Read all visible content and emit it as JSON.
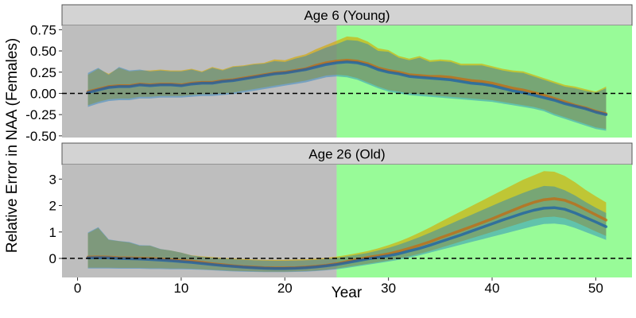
{
  "chart_data": {
    "type": "area",
    "xlabel": "Year",
    "ylabel": "Relative Error in NAA (Females)",
    "xlim": [
      -1.5,
      53.5
    ],
    "x_ticks": [
      0,
      10,
      20,
      30,
      40,
      50
    ],
    "shaded_regions": [
      {
        "x_start": -1.5,
        "x_end": 25,
        "color": "#bebebe"
      },
      {
        "x_start": 25,
        "x_end": 53.5,
        "color": "#98fb98"
      }
    ],
    "reference_line": {
      "y": 0,
      "style": "dashed"
    },
    "series_colors": [
      "#e69f00",
      "#1f78b4"
    ],
    "x": [
      1,
      2,
      3,
      4,
      5,
      6,
      7,
      8,
      9,
      10,
      11,
      12,
      13,
      14,
      15,
      16,
      17,
      18,
      19,
      20,
      21,
      22,
      23,
      24,
      25,
      26,
      27,
      28,
      29,
      30,
      31,
      32,
      33,
      34,
      35,
      36,
      37,
      38,
      39,
      40,
      41,
      42,
      43,
      44,
      45,
      46,
      47,
      48,
      49,
      50,
      51
    ],
    "panels": [
      {
        "title": "Age 6 (Young)",
        "ylim": [
          -0.52,
          0.8
        ],
        "y_ticks": [
          -0.5,
          -0.25,
          0,
          0.25,
          0.5,
          0.75
        ],
        "y_tick_labels": [
          "-0.50",
          "-0.25",
          "0.00",
          "0.25",
          "0.50",
          "0.75"
        ],
        "series": [
          {
            "median": [
              0.02,
              0.05,
              0.08,
              0.09,
              0.09,
              0.11,
              0.1,
              0.11,
              0.11,
              0.1,
              0.12,
              0.13,
              0.13,
              0.15,
              0.16,
              0.18,
              0.2,
              0.22,
              0.24,
              0.25,
              0.27,
              0.29,
              0.33,
              0.36,
              0.38,
              0.39,
              0.38,
              0.35,
              0.3,
              0.27,
              0.25,
              0.22,
              0.21,
              0.2,
              0.2,
              0.19,
              0.17,
              0.15,
              0.14,
              0.12,
              0.09,
              0.06,
              0.04,
              0.01,
              -0.02,
              -0.06,
              -0.1,
              -0.14,
              -0.17,
              -0.21,
              -0.24
            ],
            "lower": [
              -0.14,
              -0.1,
              -0.07,
              -0.06,
              -0.06,
              -0.04,
              -0.04,
              -0.03,
              -0.03,
              -0.03,
              -0.02,
              -0.01,
              -0.01,
              0,
              0.01,
              0.03,
              0.05,
              0.07,
              0.09,
              0.11,
              0.13,
              0.15,
              0.18,
              0.21,
              0.22,
              0.21,
              0.18,
              0.13,
              0.08,
              0.04,
              0.02,
              0,
              -0.01,
              -0.02,
              -0.03,
              -0.04,
              -0.05,
              -0.06,
              -0.07,
              -0.08,
              -0.1,
              -0.12,
              -0.14,
              -0.16,
              -0.19,
              -0.24,
              -0.28,
              -0.32,
              -0.36,
              -0.4,
              -0.42
            ],
            "upper": [
              0.22,
              0.29,
              0.23,
              0.3,
              0.26,
              0.27,
              0.27,
              0.28,
              0.27,
              0.27,
              0.29,
              0.26,
              0.31,
              0.28,
              0.32,
              0.33,
              0.35,
              0.36,
              0.4,
              0.39,
              0.43,
              0.46,
              0.52,
              0.57,
              0.62,
              0.67,
              0.66,
              0.61,
              0.53,
              0.51,
              0.44,
              0.41,
              0.44,
              0.39,
              0.4,
              0.39,
              0.35,
              0.35,
              0.35,
              0.32,
              0.29,
              0.27,
              0.26,
              0.22,
              0.18,
              0.14,
              0.1,
              0.08,
              0.05,
              0.02,
              0.08
            ]
          },
          {
            "median": [
              0.01,
              0.04,
              0.07,
              0.08,
              0.08,
              0.1,
              0.09,
              0.1,
              0.1,
              0.09,
              0.11,
              0.12,
              0.12,
              0.14,
              0.15,
              0.17,
              0.19,
              0.21,
              0.23,
              0.24,
              0.26,
              0.28,
              0.31,
              0.34,
              0.36,
              0.37,
              0.36,
              0.33,
              0.28,
              0.25,
              0.23,
              0.2,
              0.19,
              0.18,
              0.17,
              0.16,
              0.14,
              0.12,
              0.11,
              0.09,
              0.06,
              0.03,
              0.01,
              -0.02,
              -0.05,
              -0.08,
              -0.12,
              -0.15,
              -0.18,
              -0.22,
              -0.25
            ],
            "lower": [
              -0.16,
              -0.12,
              -0.09,
              -0.08,
              -0.08,
              -0.06,
              -0.06,
              -0.05,
              -0.05,
              -0.05,
              -0.04,
              -0.03,
              -0.03,
              -0.02,
              -0.01,
              0.01,
              0.03,
              0.05,
              0.07,
              0.09,
              0.11,
              0.13,
              0.16,
              0.19,
              0.2,
              0.19,
              0.16,
              0.11,
              0.06,
              0.02,
              0,
              -0.02,
              -0.03,
              -0.04,
              -0.05,
              -0.06,
              -0.07,
              -0.08,
              -0.09,
              -0.1,
              -0.12,
              -0.14,
              -0.16,
              -0.18,
              -0.21,
              -0.26,
              -0.3,
              -0.34,
              -0.38,
              -0.42,
              -0.44
            ],
            "upper": [
              0.24,
              0.3,
              0.22,
              0.31,
              0.27,
              0.28,
              0.26,
              0.27,
              0.26,
              0.26,
              0.28,
              0.25,
              0.3,
              0.27,
              0.31,
              0.32,
              0.34,
              0.35,
              0.38,
              0.37,
              0.41,
              0.44,
              0.49,
              0.54,
              0.58,
              0.63,
              0.62,
              0.58,
              0.5,
              0.49,
              0.42,
              0.39,
              0.42,
              0.37,
              0.38,
              0.37,
              0.33,
              0.33,
              0.33,
              0.3,
              0.27,
              0.25,
              0.24,
              0.2,
              0.16,
              0.12,
              0.08,
              0.06,
              0.03,
              0.01,
              0.06
            ]
          }
        ]
      },
      {
        "title": "Age 26 (Old)",
        "ylim": [
          -0.72,
          3.55
        ],
        "y_ticks": [
          0,
          1,
          2,
          3
        ],
        "y_tick_labels": [
          "0",
          "1",
          "2",
          "3"
        ],
        "series": [
          {
            "median": [
              0.05,
              0.06,
              0.05,
              0.03,
              0.02,
              0.01,
              0,
              -0.02,
              -0.05,
              -0.08,
              -0.1,
              -0.15,
              -0.2,
              -0.24,
              -0.28,
              -0.31,
              -0.33,
              -0.35,
              -0.36,
              -0.36,
              -0.35,
              -0.33,
              -0.3,
              -0.26,
              -0.2,
              -0.12,
              -0.04,
              0.04,
              0.1,
              0.17,
              0.27,
              0.38,
              0.5,
              0.63,
              0.78,
              0.92,
              1.06,
              1.2,
              1.35,
              1.5,
              1.66,
              1.82,
              1.98,
              2.12,
              2.22,
              2.26,
              2.2,
              2.05,
              1.85,
              1.65,
              1.45
            ],
            "lower": [
              -0.35,
              -0.35,
              -0.35,
              -0.36,
              -0.36,
              -0.36,
              -0.37,
              -0.37,
              -0.38,
              -0.38,
              -0.39,
              -0.41,
              -0.43,
              -0.45,
              -0.47,
              -0.48,
              -0.49,
              -0.5,
              -0.5,
              -0.5,
              -0.49,
              -0.48,
              -0.46,
              -0.43,
              -0.38,
              -0.32,
              -0.26,
              -0.2,
              -0.14,
              -0.08,
              0,
              0.08,
              0.18,
              0.28,
              0.4,
              0.52,
              0.64,
              0.76,
              0.88,
              1,
              1.12,
              1.24,
              1.36,
              1.48,
              1.56,
              1.58,
              1.52,
              1.38,
              1.2,
              1.02,
              0.85
            ],
            "upper": [
              0.95,
              1.15,
              0.7,
              0.65,
              0.6,
              0.48,
              0.48,
              0.35,
              0.3,
              0.22,
              0.12,
              0.08,
              0.05,
              0.02,
              0,
              -0.02,
              -0.04,
              -0.05,
              -0.05,
              -0.05,
              -0.04,
              -0.03,
              -0.01,
              0.02,
              0.07,
              0.13,
              0.2,
              0.28,
              0.38,
              0.5,
              0.64,
              0.8,
              0.98,
              1.17,
              1.38,
              1.58,
              1.78,
              1.98,
              2.18,
              2.38,
              2.58,
              2.78,
              2.98,
              3.14,
              3.3,
              3.28,
              3.12,
              2.88,
              2.6,
              2.35,
              2.12
            ]
          },
          {
            "median": [
              0.02,
              0.03,
              0.02,
              0,
              -0.01,
              -0.02,
              -0.04,
              -0.06,
              -0.09,
              -0.12,
              -0.15,
              -0.19,
              -0.23,
              -0.27,
              -0.3,
              -0.33,
              -0.35,
              -0.37,
              -0.38,
              -0.38,
              -0.37,
              -0.35,
              -0.32,
              -0.28,
              -0.23,
              -0.16,
              -0.09,
              -0.02,
              0.04,
              0.1,
              0.18,
              0.28,
              0.38,
              0.5,
              0.63,
              0.76,
              0.89,
              1.03,
              1.17,
              1.31,
              1.45,
              1.58,
              1.71,
              1.82,
              1.9,
              1.92,
              1.86,
              1.72,
              1.55,
              1.38,
              1.2
            ],
            "lower": [
              -0.38,
              -0.38,
              -0.38,
              -0.39,
              -0.39,
              -0.39,
              -0.4,
              -0.4,
              -0.41,
              -0.41,
              -0.42,
              -0.43,
              -0.45,
              -0.47,
              -0.49,
              -0.5,
              -0.51,
              -0.52,
              -0.52,
              -0.52,
              -0.51,
              -0.5,
              -0.48,
              -0.45,
              -0.41,
              -0.36,
              -0.3,
              -0.24,
              -0.18,
              -0.12,
              -0.05,
              0.03,
              0.12,
              0.22,
              0.32,
              0.42,
              0.52,
              0.62,
              0.72,
              0.82,
              0.92,
              1.02,
              1.12,
              1.22,
              1.3,
              1.32,
              1.27,
              1.15,
              1,
              0.85,
              0.7
            ],
            "upper": [
              0.98,
              1.18,
              0.72,
              0.66,
              0.62,
              0.5,
              0.49,
              0.36,
              0.3,
              0.22,
              0.11,
              0.06,
              0.02,
              -0.01,
              -0.03,
              -0.05,
              -0.07,
              -0.08,
              -0.09,
              -0.09,
              -0.08,
              -0.07,
              -0.05,
              -0.02,
              0.02,
              0.08,
              0.14,
              0.21,
              0.3,
              0.4,
              0.52,
              0.66,
              0.81,
              0.97,
              1.14,
              1.31,
              1.48,
              1.65,
              1.82,
              1.99,
              2.16,
              2.32,
              2.48,
              2.62,
              2.74,
              2.72,
              2.58,
              2.38,
              2.14,
              1.92,
              1.72
            ]
          }
        ]
      }
    ]
  }
}
